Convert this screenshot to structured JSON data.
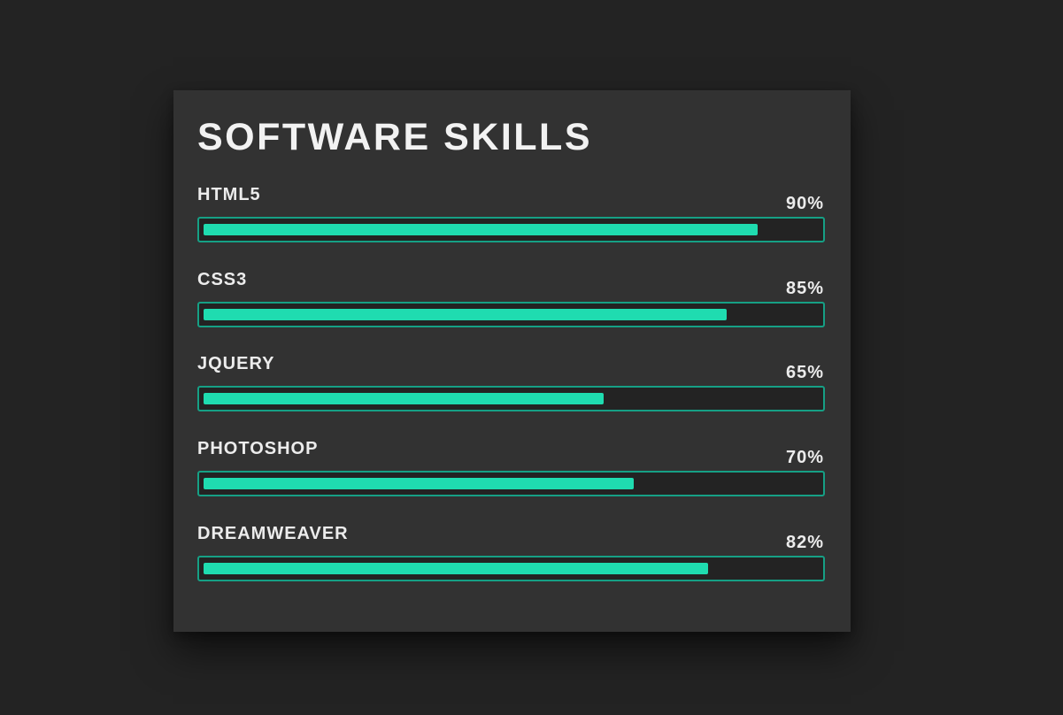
{
  "card": {
    "title": "SOFTWARE SKILLS"
  },
  "colors": {
    "background": "#232323",
    "card": "#323232",
    "bar_border": "#16a085",
    "bar_fill": "#1fdcb0",
    "text": "#ececec"
  },
  "skills": [
    {
      "name": "HTML5",
      "percent_label": "90%",
      "level": 0.9
    },
    {
      "name": "CSS3",
      "percent_label": "85%",
      "level": 0.85
    },
    {
      "name": "JQUERY",
      "percent_label": "65%",
      "level": 0.65
    },
    {
      "name": "PHOTOSHOP",
      "percent_label": "70%",
      "level": 0.7
    },
    {
      "name": "DREAMWEAVER",
      "percent_label": "82%",
      "level": 0.82
    }
  ]
}
